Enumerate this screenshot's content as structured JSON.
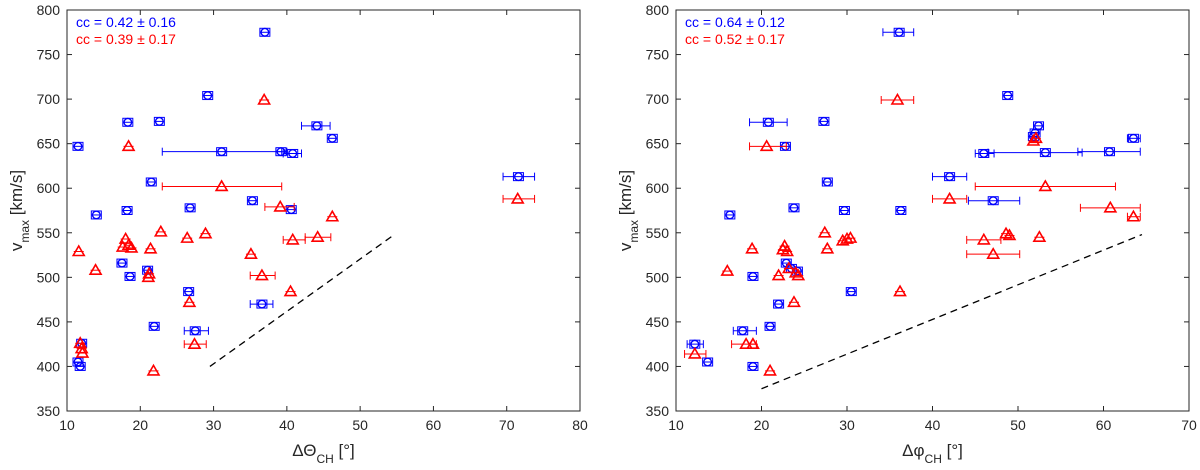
{
  "chart_data": [
    {
      "type": "scatter",
      "xlabel": "ΔΘ_CH [°]",
      "ylabel": "v_max [km/s]",
      "xlim": [
        10,
        80
      ],
      "ylim": [
        350,
        800
      ],
      "xticks": [
        10,
        20,
        30,
        40,
        50,
        60,
        70,
        80
      ],
      "yticks": [
        350,
        400,
        450,
        500,
        550,
        600,
        650,
        700,
        750,
        800
      ],
      "grid": false,
      "annotations": [
        {
          "text": "cc = 0.42 ± 0.16",
          "color": "#0000ff"
        },
        {
          "text": "cc = 0.39 ± 0.17",
          "color": "#ff0000"
        }
      ],
      "reference_line": {
        "x": [
          29.5,
          54.5
        ],
        "y": [
          400,
          547
        ],
        "style": "dashed"
      },
      "series": [
        {
          "marker": "circle-square",
          "color": "#0000ff",
          "points": [
            {
              "x": 11.5,
              "y": 647
            },
            {
              "x": 12.0,
              "y": 426
            },
            {
              "x": 11.5,
              "y": 405
            },
            {
              "x": 11.8,
              "y": 400
            },
            {
              "x": 14.0,
              "y": 570
            },
            {
              "x": 17.5,
              "y": 516
            },
            {
              "x": 18.3,
              "y": 674
            },
            {
              "x": 18.2,
              "y": 575
            },
            {
              "x": 18.6,
              "y": 501
            },
            {
              "x": 21.0,
              "y": 508
            },
            {
              "x": 21.5,
              "y": 607
            },
            {
              "x": 21.9,
              "y": 445
            },
            {
              "x": 22.6,
              "y": 675
            },
            {
              "x": 26.8,
              "y": 578
            },
            {
              "x": 26.6,
              "y": 484
            },
            {
              "x": 27.5,
              "y": 440,
              "xerr": [
                26.0,
                29.3
              ]
            },
            {
              "x": 29.2,
              "y": 704
            },
            {
              "x": 31.1,
              "y": 641,
              "xerr": [
                23.0,
                39.3
              ]
            },
            {
              "x": 35.3,
              "y": 586
            },
            {
              "x": 36.6,
              "y": 470,
              "xerr": [
                35.0,
                38.1
              ]
            },
            {
              "x": 37.0,
              "y": 775
            },
            {
              "x": 39.2,
              "y": 641,
              "xerr": [
                38.5,
                40.0
              ]
            },
            {
              "x": 40.6,
              "y": 576
            },
            {
              "x": 40.8,
              "y": 639,
              "xerr": [
                39.5,
                42.0
              ]
            },
            {
              "x": 44.1,
              "y": 670,
              "xerr": [
                42.0,
                45.9
              ]
            },
            {
              "x": 46.2,
              "y": 656
            },
            {
              "x": 71.6,
              "y": 613,
              "xerr": [
                69.5,
                73.8
              ]
            }
          ]
        },
        {
          "marker": "triangle",
          "color": "#ff0000",
          "points": [
            {
              "x": 11.6,
              "y": 529
            },
            {
              "x": 11.8,
              "y": 426
            },
            {
              "x": 12.0,
              "y": 420
            },
            {
              "x": 12.1,
              "y": 415
            },
            {
              "x": 13.9,
              "y": 508
            },
            {
              "x": 17.6,
              "y": 534
            },
            {
              "x": 18.0,
              "y": 543
            },
            {
              "x": 18.4,
              "y": 647
            },
            {
              "x": 18.4,
              "y": 536
            },
            {
              "x": 18.8,
              "y": 533
            },
            {
              "x": 21.1,
              "y": 500
            },
            {
              "x": 21.2,
              "y": 504
            },
            {
              "x": 21.4,
              "y": 532
            },
            {
              "x": 21.8,
              "y": 395
            },
            {
              "x": 22.8,
              "y": 551
            },
            {
              "x": 26.4,
              "y": 544
            },
            {
              "x": 26.7,
              "y": 472
            },
            {
              "x": 27.4,
              "y": 425,
              "xerr": [
                26.0,
                29.0
              ]
            },
            {
              "x": 28.9,
              "y": 549
            },
            {
              "x": 31.1,
              "y": 602,
              "xerr": [
                23.0,
                39.3
              ]
            },
            {
              "x": 35.1,
              "y": 526
            },
            {
              "x": 36.6,
              "y": 502,
              "xerr": [
                35.0,
                38.4
              ]
            },
            {
              "x": 36.9,
              "y": 699
            },
            {
              "x": 39.1,
              "y": 579,
              "xerr": [
                37.0,
                41.0
              ]
            },
            {
              "x": 40.5,
              "y": 484
            },
            {
              "x": 40.8,
              "y": 542,
              "xerr": [
                39.5,
                42.5
              ]
            },
            {
              "x": 44.2,
              "y": 545,
              "xerr": [
                42.5,
                46.0
              ]
            },
            {
              "x": 46.2,
              "y": 568
            },
            {
              "x": 71.5,
              "y": 588,
              "xerr": [
                69.5,
                73.8
              ]
            }
          ]
        }
      ]
    },
    {
      "type": "scatter",
      "xlabel": "Δφ_CH [°]",
      "ylabel": "v_max [km/s]",
      "xlim": [
        10,
        70
      ],
      "ylim": [
        350,
        800
      ],
      "xticks": [
        10,
        20,
        30,
        40,
        50,
        60,
        70
      ],
      "yticks": [
        350,
        400,
        450,
        500,
        550,
        600,
        650,
        700,
        750,
        800
      ],
      "grid": false,
      "annotations": [
        {
          "text": "cc = 0.64 ± 0.12",
          "color": "#0000ff"
        },
        {
          "text": "cc = 0.52 ± 0.17",
          "color": "#ff0000"
        }
      ],
      "reference_line": {
        "x": [
          20,
          64.5
        ],
        "y": [
          375,
          548
        ],
        "style": "dashed"
      },
      "series": [
        {
          "marker": "circle-square",
          "color": "#0000ff",
          "points": [
            {
              "x": 12.2,
              "y": 425,
              "xerr": [
                11.3,
                13.2
              ]
            },
            {
              "x": 13.7,
              "y": 405
            },
            {
              "x": 16.3,
              "y": 570
            },
            {
              "x": 17.8,
              "y": 440,
              "xerr": [
                16.7,
                19.4
              ]
            },
            {
              "x": 19.0,
              "y": 501
            },
            {
              "x": 19.0,
              "y": 400
            },
            {
              "x": 20.8,
              "y": 674,
              "xerr": [
                18.6,
                23.0
              ]
            },
            {
              "x": 21.0,
              "y": 445
            },
            {
              "x": 22.0,
              "y": 470
            },
            {
              "x": 22.8,
              "y": 647
            },
            {
              "x": 22.9,
              "y": 516
            },
            {
              "x": 23.5,
              "y": 510
            },
            {
              "x": 24.2,
              "y": 507
            },
            {
              "x": 23.8,
              "y": 578
            },
            {
              "x": 27.3,
              "y": 675
            },
            {
              "x": 27.7,
              "y": 607
            },
            {
              "x": 29.7,
              "y": 575
            },
            {
              "x": 30.5,
              "y": 484
            },
            {
              "x": 36.1,
              "y": 775,
              "xerr": [
                34.2,
                37.8
              ]
            },
            {
              "x": 36.3,
              "y": 575
            },
            {
              "x": 42.0,
              "y": 613,
              "xerr": [
                40.0,
                44.0
              ]
            },
            {
              "x": 47.1,
              "y": 586,
              "xerr": [
                44.2,
                50.2
              ]
            },
            {
              "x": 46.0,
              "y": 639,
              "xerr": [
                45.0,
                47.2
              ]
            },
            {
              "x": 48.8,
              "y": 704
            },
            {
              "x": 51.8,
              "y": 658
            },
            {
              "x": 52.0,
              "y": 662
            },
            {
              "x": 52.4,
              "y": 670
            },
            {
              "x": 53.2,
              "y": 640,
              "xerr": [
                46.5,
                57.5
              ]
            },
            {
              "x": 60.7,
              "y": 641,
              "xerr": [
                57.0,
                64.3
              ]
            },
            {
              "x": 63.5,
              "y": 656,
              "xerr": [
                62.8,
                64.3
              ]
            }
          ]
        },
        {
          "marker": "triangle",
          "color": "#ff0000",
          "points": [
            {
              "x": 12.2,
              "y": 414,
              "xerr": [
                11.0,
                13.5
              ]
            },
            {
              "x": 16.0,
              "y": 507
            },
            {
              "x": 18.2,
              "y": 425,
              "xerr": [
                16.5,
                19.4
              ]
            },
            {
              "x": 18.9,
              "y": 532
            },
            {
              "x": 19.0,
              "y": 425
            },
            {
              "x": 20.6,
              "y": 647,
              "xerr": [
                18.6,
                22.9
              ]
            },
            {
              "x": 21.0,
              "y": 395
            },
            {
              "x": 22.0,
              "y": 502
            },
            {
              "x": 22.5,
              "y": 531
            },
            {
              "x": 22.7,
              "y": 535
            },
            {
              "x": 23.0,
              "y": 529
            },
            {
              "x": 23.2,
              "y": 510
            },
            {
              "x": 23.8,
              "y": 472
            },
            {
              "x": 24.0,
              "y": 505
            },
            {
              "x": 24.3,
              "y": 502
            },
            {
              "x": 27.4,
              "y": 550
            },
            {
              "x": 27.7,
              "y": 532
            },
            {
              "x": 29.5,
              "y": 541
            },
            {
              "x": 30.0,
              "y": 543
            },
            {
              "x": 30.4,
              "y": 544
            },
            {
              "x": 35.9,
              "y": 699,
              "xerr": [
                34.0,
                37.8
              ]
            },
            {
              "x": 36.2,
              "y": 484
            },
            {
              "x": 42.0,
              "y": 588,
              "xerr": [
                40.0,
                44.0
              ]
            },
            {
              "x": 46.0,
              "y": 542,
              "xerr": [
                44.0,
                48.0
              ]
            },
            {
              "x": 47.1,
              "y": 526,
              "xerr": [
                44.0,
                50.2
              ]
            },
            {
              "x": 48.6,
              "y": 549
            },
            {
              "x": 49.0,
              "y": 547
            },
            {
              "x": 51.8,
              "y": 653
            },
            {
              "x": 52.1,
              "y": 656
            },
            {
              "x": 52.5,
              "y": 545
            },
            {
              "x": 53.2,
              "y": 602,
              "xerr": [
                45.0,
                61.4
              ]
            },
            {
              "x": 60.8,
              "y": 578,
              "xerr": [
                57.3,
                64.3
              ]
            },
            {
              "x": 63.5,
              "y": 568,
              "xerr": [
                62.8,
                64.3
              ]
            }
          ]
        }
      ]
    }
  ]
}
